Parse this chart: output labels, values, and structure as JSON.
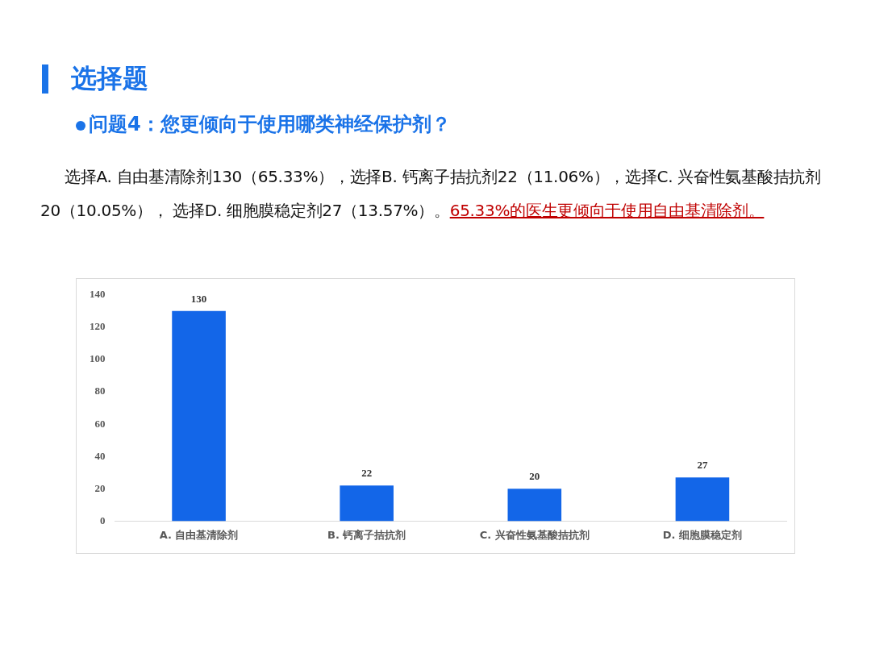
{
  "chart_data": {
    "type": "bar",
    "title": "选择题",
    "subtitle": "问题4：您更倾向于使用哪类神经保护剂？",
    "annotations": [
      "选择A. 自由基清除剂130（65.33%），选择B. 钙离子拮抗剂22（11.06%），选择C. 兴奋性氨基酸拮抗剂 20（10.05%）， 选择D. 细胞膜稳定剂27（13.57%）。",
      "65.33%的医生更倾向于使用自由基清除剂。"
    ],
    "categories": [
      "A. 自由基清除剂",
      "B. 钙离子拮抗剂",
      "C. 兴奋性氨基酸拮抗剂",
      "D. 细胞膜稳定剂"
    ],
    "values": [
      130,
      22,
      20,
      27
    ],
    "color": "#1366e8",
    "ylim": [
      0,
      140
    ],
    "yticks": [
      0,
      20,
      40,
      60,
      80,
      100,
      120,
      140
    ],
    "grid": false,
    "legend": false,
    "data_labels": true
  }
}
